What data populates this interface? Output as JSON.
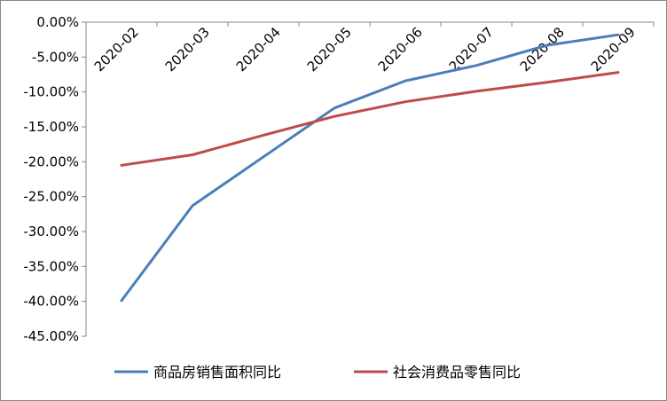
{
  "chart_data": {
    "type": "line",
    "title": "",
    "xlabel": "",
    "ylabel": "",
    "categories": [
      "2020-02",
      "2020-03",
      "2020-04",
      "2020-05",
      "2020-06",
      "2020-07",
      "2020-08",
      "2020-09"
    ],
    "ylim": [
      -45,
      0
    ],
    "ytick_step": 5,
    "ytick_labels": [
      "0.00%",
      "-5.00%",
      "-10.00%",
      "-15.00%",
      "-20.00%",
      "-25.00%",
      "-30.00%",
      "-35.00%",
      "-40.00%",
      "-45.00%"
    ],
    "grid": false,
    "legend_position": "bottom",
    "series": [
      {
        "name": "商品房销售面积同比",
        "color": "#4a7ebb",
        "values": [
          -39.9,
          -26.3,
          -19.3,
          -12.3,
          -8.4,
          -6.2,
          -3.3,
          -1.8
        ]
      },
      {
        "name": "社会消费品零售同比",
        "color": "#be4b48",
        "values": [
          -20.5,
          -19.0,
          -16.2,
          -13.5,
          -11.4,
          -9.9,
          -8.6,
          -7.2
        ]
      }
    ]
  }
}
